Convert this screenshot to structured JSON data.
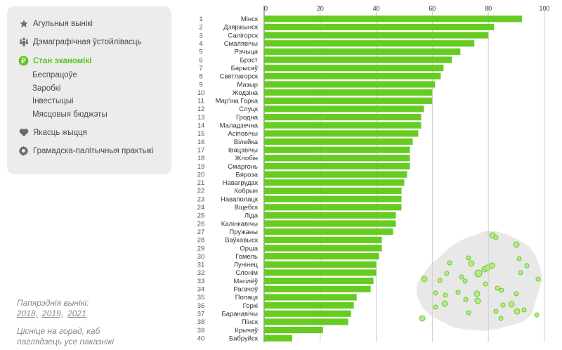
{
  "sidebar": {
    "items": [
      {
        "label": "Агульныя вынікі",
        "icon": "star-icon"
      },
      {
        "label": "Дэмаграфічная ўстойлівасць",
        "icon": "people-icon"
      },
      {
        "label": "Стан эканомікі",
        "icon": "ruble-icon",
        "active": true
      },
      {
        "label": "Якасць жыцця",
        "icon": "heart-icon"
      },
      {
        "label": "Грамадска-палітычныя практыкі",
        "icon": "gear-icon"
      }
    ],
    "sub_items": [
      "Беспрацоўе",
      "Заробкі",
      "Інвестыцыі",
      "Мясцовыя бюджэты"
    ],
    "previous_label": "Папярэднія вынікі:",
    "previous_years": [
      "2018,",
      "2019,",
      "2021"
    ],
    "tip_line1": "Цісніце на горад, каб",
    "tip_line2": "паглядзець усе паказнікі"
  },
  "colors": {
    "bar": "#66cc22",
    "accent": "#5ec21e",
    "map_fill": "#e8e8e8",
    "map_dot": "#b5ea8c"
  },
  "chart_data": {
    "type": "bar",
    "orientation": "horizontal",
    "xlim": [
      0,
      100
    ],
    "xticks": [
      0,
      20,
      40,
      60,
      80,
      100
    ],
    "grid": true,
    "categories": [
      "Мінск",
      "Дзяржынск",
      "Салігорск",
      "Смалявічы",
      "Рэчыца",
      "Брэст",
      "Барысаў",
      "Светлагорск",
      "Мазыр",
      "Жодзіна",
      "Мар'іна Горка",
      "Слуцк",
      "Гродна",
      "Маладзечна",
      "Асіповічы",
      "Вілейка",
      "Івацэвічы",
      "Жлобін",
      "Смаргонь",
      "Бяроза",
      "Навагрудак",
      "Кобрын",
      "Наваполацк",
      "Віцебск",
      "Ліда",
      "Калінкавічы",
      "Пружаны",
      "Ваўкавыск",
      "Орша",
      "Гомель",
      "Лунінец",
      "Слонім",
      "Магілёў",
      "Рагачоў",
      "Полацк",
      "Горкі",
      "Баранавічы",
      "Пінск",
      "Крычаў",
      "Бабруйск"
    ],
    "values": [
      92,
      82,
      80,
      75,
      70,
      67,
      64,
      63,
      61,
      60,
      60,
      57,
      56,
      56,
      55,
      53,
      52,
      52,
      52,
      51,
      50,
      49,
      49,
      49,
      47,
      47,
      46,
      42,
      42,
      41,
      40,
      40,
      39,
      38,
      33,
      32,
      31,
      30,
      21,
      10
    ]
  }
}
